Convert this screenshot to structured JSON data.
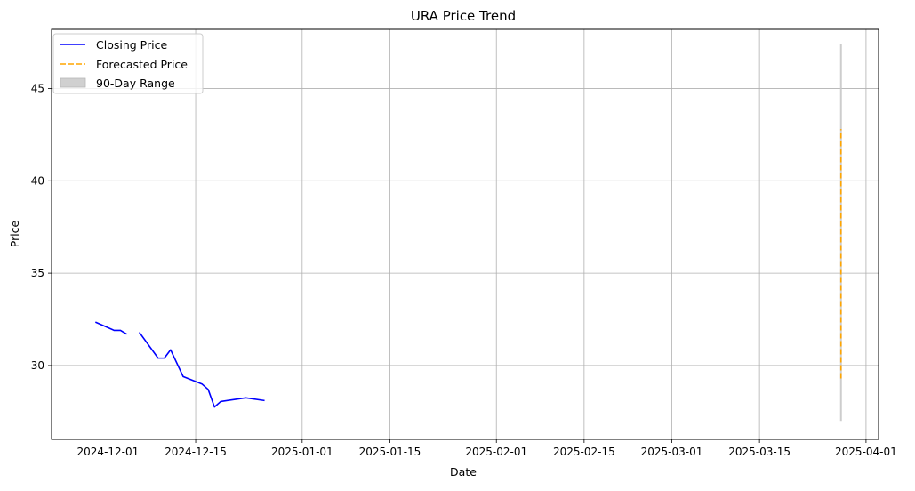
{
  "chart_data": {
    "type": "line",
    "title": "URA Price Trend",
    "xlabel": "Date",
    "ylabel": "Price",
    "x_axis_type": "date",
    "xlim": [
      "2024-11-22",
      "2025-04-03"
    ],
    "ylim": [
      26.0,
      48.2
    ],
    "grid": true,
    "legend_position": "top-left",
    "x_ticks": [
      {
        "date": "2024-12-01",
        "label": "2024-12-01"
      },
      {
        "date": "2024-12-15",
        "label": "2024-12-15"
      },
      {
        "date": "2025-01-01",
        "label": "2025-01-01"
      },
      {
        "date": "2025-01-15",
        "label": "2025-01-15"
      },
      {
        "date": "2025-02-01",
        "label": "2025-02-01"
      },
      {
        "date": "2025-02-15",
        "label": "2025-02-15"
      },
      {
        "date": "2025-03-01",
        "label": "2025-03-01"
      },
      {
        "date": "2025-03-15",
        "label": "2025-03-15"
      },
      {
        "date": "2025-04-01",
        "label": "2025-04-01"
      }
    ],
    "y_ticks": [
      30,
      35,
      40,
      45
    ],
    "series": [
      {
        "name": "Closing Price",
        "style": "solid",
        "color": "#0000ff",
        "segments": [
          [
            {
              "x": "2024-11-29",
              "y": 32.35
            },
            {
              "x": "2024-12-02",
              "y": 31.9
            },
            {
              "x": "2024-12-03",
              "y": 31.9
            },
            {
              "x": "2024-12-04",
              "y": 31.7
            }
          ],
          [
            {
              "x": "2024-12-06",
              "y": 31.8
            },
            {
              "x": "2024-12-09",
              "y": 30.4
            },
            {
              "x": "2024-12-10",
              "y": 30.4
            },
            {
              "x": "2024-12-11",
              "y": 30.85
            },
            {
              "x": "2024-12-13",
              "y": 29.4
            },
            {
              "x": "2024-12-16",
              "y": 29.0
            },
            {
              "x": "2024-12-17",
              "y": 28.7
            },
            {
              "x": "2024-12-18",
              "y": 27.75
            },
            {
              "x": "2024-12-19",
              "y": 28.05
            },
            {
              "x": "2024-12-23",
              "y": 28.25
            },
            {
              "x": "2024-12-26",
              "y": 28.1
            }
          ]
        ]
      },
      {
        "name": "Forecasted Price",
        "style": "dashed",
        "color": "#ffa500",
        "segments": [
          [
            {
              "x": "2025-03-28",
              "y": 29.3
            },
            {
              "x": "2025-03-28",
              "y": 42.8
            }
          ]
        ]
      }
    ],
    "range_band": {
      "name": "90-Day Range",
      "color": "#c8c8c8",
      "x": "2025-03-28",
      "low": 27.0,
      "high": 47.4
    }
  }
}
